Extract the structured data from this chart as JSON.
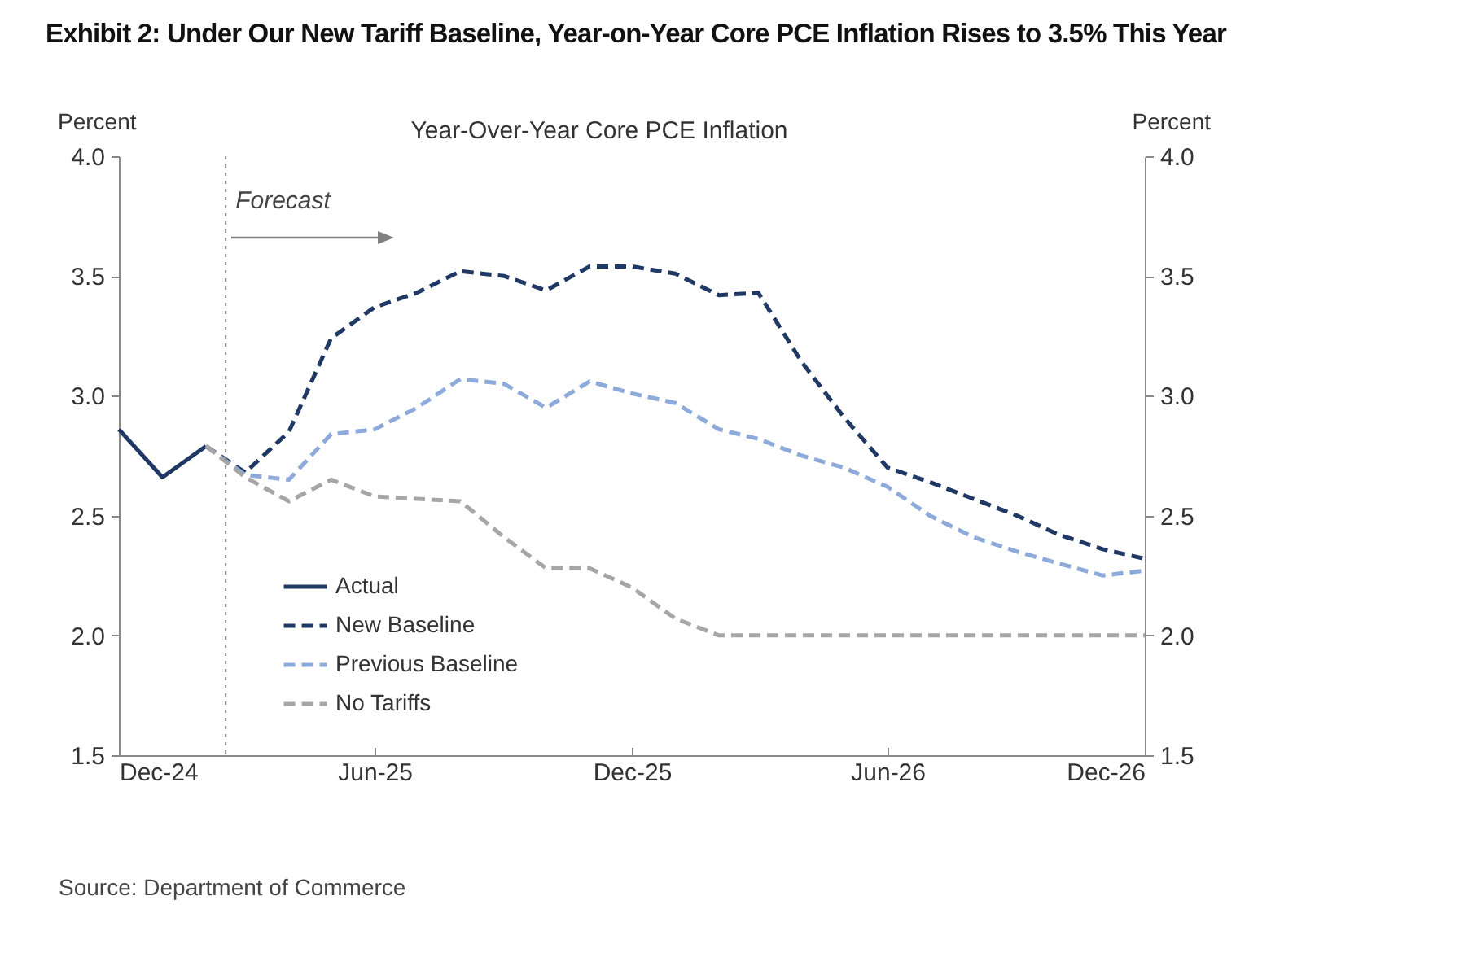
{
  "chart_data": {
    "type": "line",
    "title": "Exhibit 2: Under Our New Tariff Baseline, Year-on-Year Core PCE Inflation Rises to 3.5% This Year",
    "subtitle": "Year-Over-Year  Core PCE Inflation",
    "ylabel": "Percent",
    "y2label": "Percent",
    "xlim": [
      "2024-12",
      "2026-12"
    ],
    "xticks": [
      {
        "value": "2024-12",
        "label": "Dec-24"
      },
      {
        "value": "2025-06",
        "label": "Jun-25"
      },
      {
        "value": "2025-12",
        "label": "Dec-25"
      },
      {
        "value": "2026-06",
        "label": "Jun-26"
      },
      {
        "value": "2026-12",
        "label": "Dec-26"
      }
    ],
    "ylim": [
      1.5,
      4.0
    ],
    "yticks": [
      {
        "value": 1.5,
        "label": "1.5"
      },
      {
        "value": 2.0,
        "label": "2.0"
      },
      {
        "value": 2.5,
        "label": "2.5"
      },
      {
        "value": 3.0,
        "label": "3.0"
      },
      {
        "value": 3.5,
        "label": "3.5"
      },
      {
        "value": 4.0,
        "label": "4.0"
      }
    ],
    "y2lim": [
      1.5,
      4.0
    ],
    "y2ticks": [
      {
        "value": 1.5,
        "label": "1.5"
      },
      {
        "value": 2.0,
        "label": "2.0"
      },
      {
        "value": 2.5,
        "label": "2.5"
      },
      {
        "value": 3.0,
        "label": "3.0"
      },
      {
        "value": 3.5,
        "label": "3.5"
      },
      {
        "value": 4.0,
        "label": "4.0"
      }
    ],
    "series": [
      {
        "name": "Actual",
        "color": "#1f3864",
        "line_style": "solid",
        "x": [
          "2024-12",
          "2025-01",
          "2025-02"
        ],
        "values": [
          2.86,
          2.66,
          2.79
        ]
      },
      {
        "name": "New Baseline",
        "color": "#1f3864",
        "line_style": "dashed",
        "x": [
          "2025-02",
          "2025-03",
          "2025-04",
          "2025-05",
          "2025-06",
          "2025-07",
          "2025-08",
          "2025-09",
          "2025-10",
          "2025-11",
          "2025-12",
          "2026-01",
          "2026-02",
          "2026-03",
          "2026-04",
          "2026-05",
          "2026-06",
          "2026-07",
          "2026-08",
          "2026-09",
          "2026-10",
          "2026-11",
          "2026-12"
        ],
        "values": [
          2.79,
          2.68,
          2.85,
          3.24,
          3.37,
          3.43,
          3.52,
          3.5,
          3.44,
          3.54,
          3.54,
          3.51,
          3.42,
          3.43,
          3.14,
          2.91,
          2.7,
          2.64,
          2.57,
          2.5,
          2.42,
          2.36,
          2.32
        ]
      },
      {
        "name": "Previous Baseline",
        "color": "#8eaadb",
        "line_style": "dashed",
        "x": [
          "2025-02",
          "2025-03",
          "2025-04",
          "2025-05",
          "2025-06",
          "2025-07",
          "2025-08",
          "2025-09",
          "2025-10",
          "2025-11",
          "2025-12",
          "2026-01",
          "2026-02",
          "2026-03",
          "2026-04",
          "2026-05",
          "2026-06",
          "2026-07",
          "2026-08",
          "2026-09",
          "2026-10",
          "2026-11",
          "2026-12"
        ],
        "values": [
          2.79,
          2.67,
          2.65,
          2.84,
          2.86,
          2.95,
          3.07,
          3.05,
          2.95,
          3.06,
          3.01,
          2.97,
          2.86,
          2.82,
          2.75,
          2.7,
          2.62,
          2.5,
          2.41,
          2.35,
          2.3,
          2.25,
          2.27
        ]
      },
      {
        "name": "No Tariffs",
        "color": "#a6a6a6",
        "line_style": "dashed",
        "x": [
          "2025-02",
          "2025-03",
          "2025-04",
          "2025-05",
          "2025-06",
          "2025-07",
          "2025-08",
          "2025-09",
          "2025-10",
          "2025-11",
          "2025-12",
          "2026-01",
          "2026-02",
          "2026-03",
          "2026-04",
          "2026-05",
          "2026-06",
          "2026-07",
          "2026-08",
          "2026-09",
          "2026-10",
          "2026-11",
          "2026-12"
        ],
        "values": [
          2.79,
          2.66,
          2.56,
          2.65,
          2.58,
          2.57,
          2.56,
          2.41,
          2.28,
          2.28,
          2.2,
          2.07,
          2.0,
          2.0,
          2.0,
          2.0,
          2.0,
          2.0,
          2.0,
          2.0,
          2.0,
          2.0,
          2.0
        ]
      }
    ],
    "ref_lines": [
      {
        "axis": "x",
        "value": "2025-02-15",
        "label": "Forecast",
        "color": "#808080",
        "line_style": "dotted"
      }
    ],
    "legend": "bottom left",
    "grid": false,
    "annotations": [
      "Source: Department of Commerce"
    ]
  }
}
